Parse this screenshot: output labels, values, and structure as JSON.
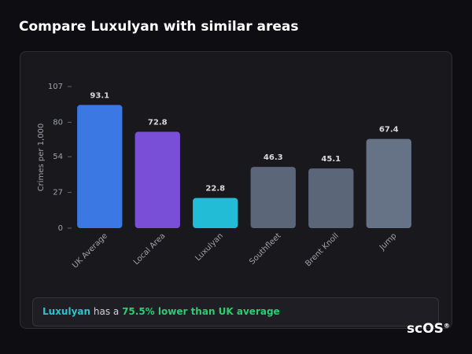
{
  "title": "Compare Luxulyan with similar areas",
  "chart_data": {
    "type": "bar",
    "y_label": "Crimes per 1,000",
    "categories": [
      "UK Average",
      "Local Area",
      "Luxulyan",
      "Southfleet",
      "Brent Knoll",
      "Jump"
    ],
    "values": [
      93.1,
      72.8,
      22.8,
      46.3,
      45.1,
      67.4
    ],
    "colors": [
      "#3b78e3",
      "#7a4fd8",
      "#22bcd6",
      "#5b6679",
      "#5b6679",
      "#667387"
    ],
    "ylim": [
      0,
      107
    ],
    "yticks": [
      0,
      27,
      54,
      80,
      107
    ],
    "grid": false
  },
  "summary": {
    "area": "Luxulyan",
    "middle": " has a ",
    "comparison": "75.5% lower than UK average"
  },
  "logo": {
    "text": "scOS",
    "mark": "®"
  }
}
